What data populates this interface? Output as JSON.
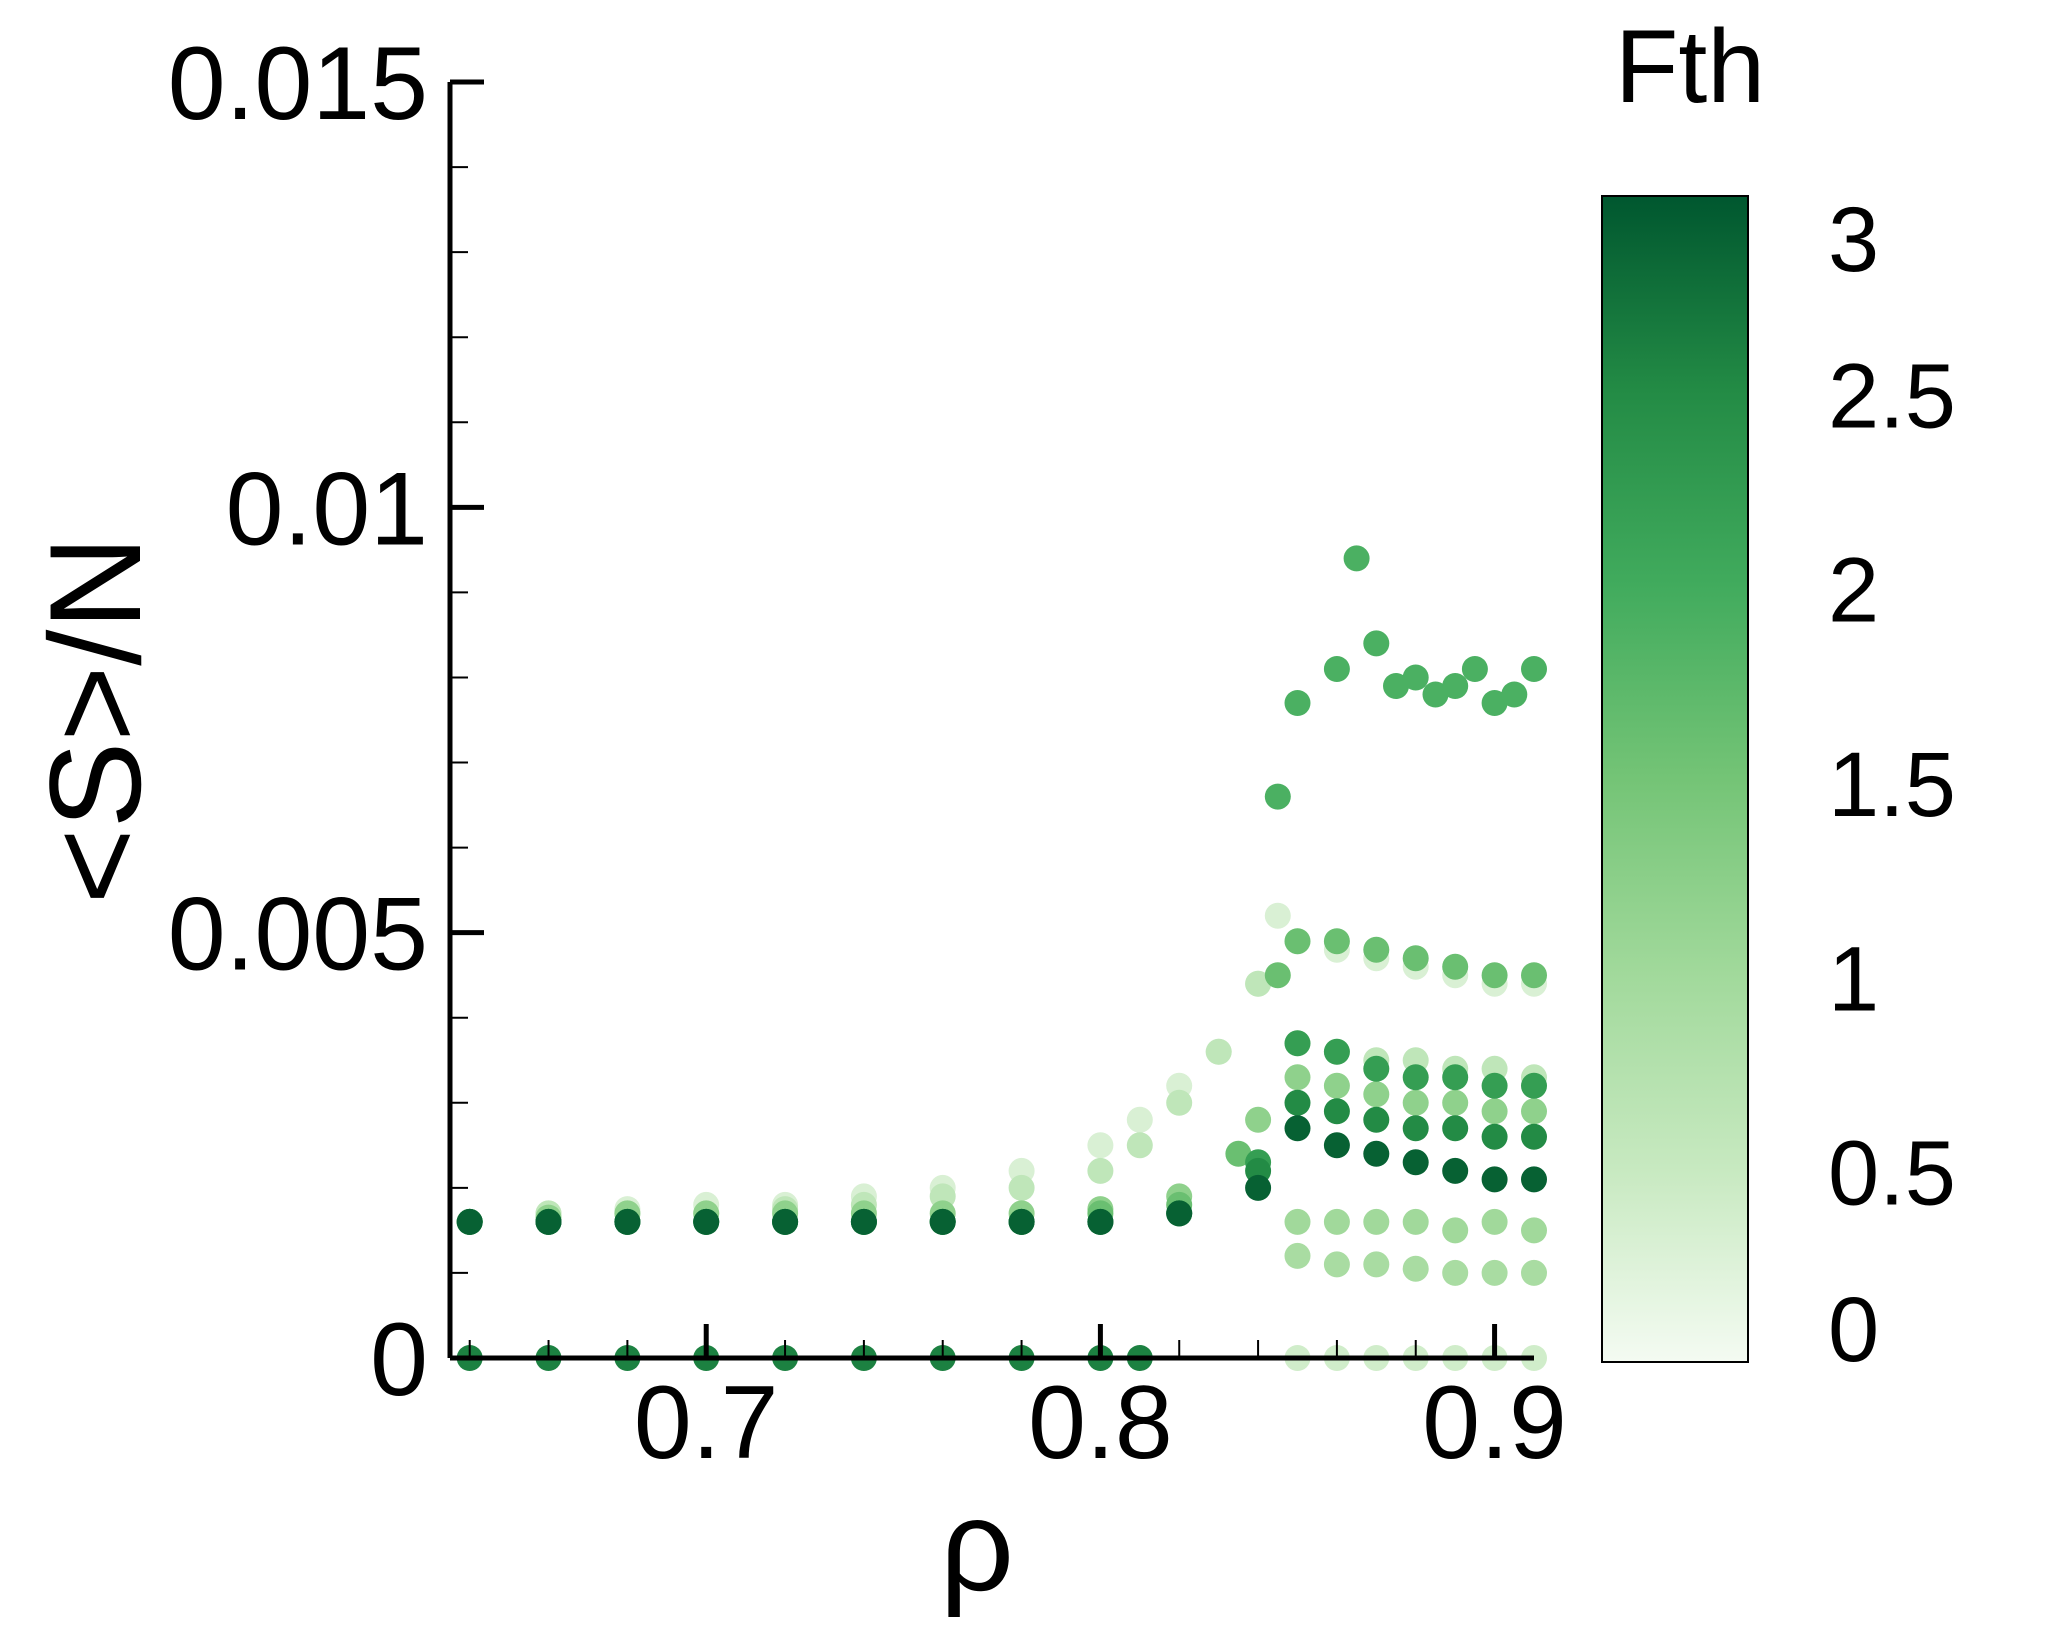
{
  "chart_data": {
    "type": "scatter",
    "title": "",
    "xlabel": "ρ",
    "ylabel": "<S>/N",
    "xlim": [
      0.635,
      0.91
    ],
    "ylim": [
      0,
      0.015
    ],
    "x_ticks": [
      {
        "value": 0.7,
        "label": "0.7"
      },
      {
        "value": 0.8,
        "label": "0.8"
      },
      {
        "value": 0.9,
        "label": "0.9"
      }
    ],
    "y_ticks": [
      {
        "value": 0,
        "label": "0"
      },
      {
        "value": 0.005,
        "label": "0.005"
      },
      {
        "value": 0.01,
        "label": "0.01"
      },
      {
        "value": 0.015,
        "label": "0.015"
      }
    ],
    "colorbar": {
      "label": "Fth",
      "range": [
        0,
        3
      ],
      "ticks": [
        {
          "value": 0,
          "label": "0"
        },
        {
          "value": 0.5,
          "label": "0.5"
        },
        {
          "value": 1,
          "label": "1"
        },
        {
          "value": 1.5,
          "label": "1.5"
        },
        {
          "value": 2,
          "label": "2"
        },
        {
          "value": 2.5,
          "label": "2.5"
        },
        {
          "value": 3,
          "label": "3"
        }
      ],
      "colors": [
        "#f4fbf2",
        "#c7e9c0",
        "#a1d99b",
        "#74c476",
        "#41ab5d",
        "#238b45",
        "#00572f"
      ]
    },
    "grid": false,
    "series": [
      {
        "fth": 0.3,
        "x": [
          0.64,
          0.66,
          0.68,
          0.7,
          0.72,
          0.74,
          0.76,
          0.78,
          0.8,
          0.81,
          0.82,
          0.83,
          0.84,
          0.845,
          0.85,
          0.86,
          0.87,
          0.88,
          0.89,
          0.9,
          0.91
        ],
        "y": [
          0.0016,
          0.0017,
          0.00175,
          0.0018,
          0.0018,
          0.0019,
          0.002,
          0.0022,
          0.0025,
          0.0028,
          0.0032,
          0.0036,
          0.0044,
          0.0052,
          0.0049,
          0.0048,
          0.0047,
          0.0046,
          0.0045,
          0.0044,
          0.0044
        ]
      },
      {
        "fth": 0.6,
        "x": [
          0.64,
          0.66,
          0.68,
          0.7,
          0.72,
          0.74,
          0.76,
          0.78,
          0.8,
          0.81,
          0.82,
          0.83,
          0.84,
          0.85,
          0.86,
          0.87,
          0.88,
          0.89,
          0.9,
          0.91
        ],
        "y": [
          0.0016,
          0.0017,
          0.0017,
          0.0017,
          0.00175,
          0.0018,
          0.0019,
          0.002,
          0.0022,
          0.0025,
          0.003,
          0.0036,
          0.0044,
          0.0037,
          0.0036,
          0.0035,
          0.0035,
          0.0034,
          0.0034,
          0.0033
        ]
      },
      {
        "fth": 0.9,
        "x": [
          0.85,
          0.86,
          0.87,
          0.88,
          0.89,
          0.9,
          0.91
        ],
        "y": [
          0.0012,
          0.0011,
          0.0011,
          0.00105,
          0.001,
          0.001,
          0.001
        ]
      },
      {
        "fth": 1.0,
        "x": [
          0.85,
          0.86,
          0.87,
          0.88,
          0.89,
          0.9,
          0.91
        ],
        "y": [
          0.0016,
          0.0016,
          0.0016,
          0.0016,
          0.0015,
          0.0016,
          0.0015
        ]
      },
      {
        "fth": 1.2,
        "x": [
          0.64,
          0.66,
          0.68,
          0.7,
          0.72,
          0.74,
          0.76,
          0.78,
          0.8,
          0.82,
          0.84,
          0.85,
          0.86,
          0.87,
          0.88,
          0.89,
          0.9,
          0.91
        ],
        "y": [
          0.0016,
          0.00165,
          0.0017,
          0.0017,
          0.0017,
          0.0017,
          0.0017,
          0.0017,
          0.00175,
          0.0019,
          0.0028,
          0.0033,
          0.0032,
          0.0031,
          0.003,
          0.003,
          0.0029,
          0.0029
        ]
      },
      {
        "fth": 1.6,
        "x": [
          0.64,
          0.66,
          0.68,
          0.7,
          0.72,
          0.74,
          0.76,
          0.78,
          0.8,
          0.82,
          0.835,
          0.845,
          0.85,
          0.86,
          0.87,
          0.88,
          0.89,
          0.9,
          0.91
        ],
        "y": [
          0.0016,
          0.0016,
          0.0016,
          0.0016,
          0.0016,
          0.0016,
          0.0016,
          0.0016,
          0.0017,
          0.0018,
          0.0024,
          0.0045,
          0.0049,
          0.0049,
          0.0048,
          0.0047,
          0.0046,
          0.0045,
          0.0045
        ]
      },
      {
        "fth": 1.9,
        "x": [
          0.845,
          0.85,
          0.86,
          0.865,
          0.87,
          0.875,
          0.88,
          0.885,
          0.89,
          0.895,
          0.9,
          0.905,
          0.91
        ],
        "y": [
          0.0066,
          0.0077,
          0.0081,
          0.0094,
          0.0084,
          0.0079,
          0.008,
          0.0078,
          0.0079,
          0.0081,
          0.0077,
          0.0078,
          0.0081
        ]
      },
      {
        "fth": 2.2,
        "x": [
          0.64,
          0.66,
          0.68,
          0.7,
          0.72,
          0.74,
          0.76,
          0.78,
          0.8,
          0.82,
          0.84,
          0.85,
          0.86,
          0.87,
          0.88,
          0.89,
          0.9,
          0.91
        ],
        "y": [
          0.0016,
          0.0016,
          0.0016,
          0.0016,
          0.0016,
          0.0016,
          0.0016,
          0.0016,
          0.0016,
          0.0017,
          0.0023,
          0.0037,
          0.0036,
          0.0034,
          0.0033,
          0.0033,
          0.0032,
          0.0032
        ]
      },
      {
        "fth": 2.5,
        "x": [
          0.64,
          0.66,
          0.68,
          0.7,
          0.72,
          0.74,
          0.76,
          0.78,
          0.8,
          0.82,
          0.84,
          0.85,
          0.86,
          0.87,
          0.88,
          0.89,
          0.9,
          0.91
        ],
        "y": [
          0.0016,
          0.0016,
          0.0016,
          0.0016,
          0.0016,
          0.0016,
          0.0016,
          0.0016,
          0.0016,
          0.0017,
          0.0022,
          0.003,
          0.0029,
          0.0028,
          0.0027,
          0.0027,
          0.0026,
          0.0026
        ]
      },
      {
        "fth": 2.9,
        "x": [
          0.64,
          0.66,
          0.68,
          0.7,
          0.72,
          0.74,
          0.76,
          0.78,
          0.8,
          0.82,
          0.84,
          0.85,
          0.86,
          0.87,
          0.88,
          0.89,
          0.9,
          0.91
        ],
        "y": [
          0.0016,
          0.0016,
          0.0016,
          0.0016,
          0.0016,
          0.0016,
          0.0016,
          0.0016,
          0.0016,
          0.0017,
          0.002,
          0.0027,
          0.0025,
          0.0024,
          0.0023,
          0.0022,
          0.0021,
          0.0021
        ]
      },
      {
        "fth": 2.6,
        "x": [
          0.64,
          0.66,
          0.68,
          0.7,
          0.72,
          0.74,
          0.76,
          0.78,
          0.8,
          0.81
        ],
        "y": [
          0,
          0,
          0,
          0,
          0,
          0,
          0,
          0,
          0,
          0
        ]
      },
      {
        "fth": 0.4,
        "x": [
          0.85,
          0.86,
          0.87,
          0.88,
          0.89,
          0.9,
          0.91
        ],
        "y": [
          0,
          0,
          0,
          0,
          0,
          0,
          0
        ]
      }
    ]
  }
}
